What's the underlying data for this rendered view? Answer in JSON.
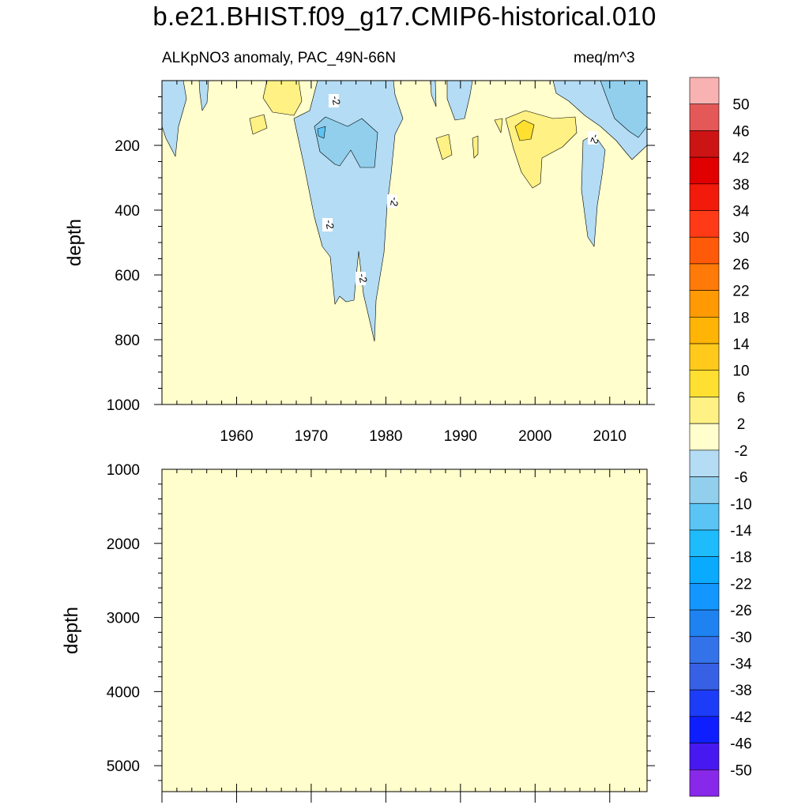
{
  "title": "b.e21.BHIST.f09_g17.CMIP6-historical.010",
  "subtitle_left": "ALKpNO3 anomaly, PAC_49N-66N",
  "subtitle_right": "meq/m^3",
  "chart_data": [
    {
      "type": "heatmap",
      "panel": "upper",
      "title": "ALKpNO3 anomaly, PAC_49N-66N",
      "units": "meq/m^3",
      "xlabel": "",
      "ylabel": "depth",
      "xlim": [
        1950,
        2015
      ],
      "ylim": [
        1000,
        0
      ],
      "x_ticks": [
        1960,
        1970,
        1980,
        1990,
        2000,
        2010
      ],
      "y_ticks": [
        200,
        400,
        600,
        800,
        1000
      ],
      "background_level": "-2 to 2",
      "contour_labels": [
        "-2",
        "-2",
        "-2",
        "-2",
        "-2"
      ],
      "features": [
        {
          "description": "negative anomaly tongue",
          "years": [
            1971,
            1981
          ],
          "depth_max": 810,
          "value_range": [
            -6,
            -2
          ]
        },
        {
          "description": "negative core",
          "years": [
            1970,
            1976
          ],
          "depth_range": [
            140,
            270
          ],
          "value_range": [
            -10,
            -6
          ]
        },
        {
          "description": "positive anomaly",
          "years": [
            1997,
            2005
          ],
          "depth_range": [
            120,
            320
          ],
          "value_range": [
            2,
            10
          ]
        },
        {
          "description": "negative near-surface",
          "years": [
            2004,
            2015
          ],
          "depth_range": [
            0,
            250
          ],
          "value_range": [
            -10,
            -2
          ]
        }
      ]
    },
    {
      "type": "heatmap",
      "panel": "lower",
      "xlabel": "",
      "ylabel": "depth",
      "xlim": [
        1950,
        2015
      ],
      "ylim": [
        5350,
        1000
      ],
      "y_ticks": [
        1000,
        2000,
        3000,
        4000,
        5000
      ],
      "background_level": "-2 to 2"
    }
  ],
  "colorbar": {
    "labels": [
      "50",
      "46",
      "42",
      "38",
      "34",
      "30",
      "26",
      "22",
      "18",
      "14",
      "10",
      "6",
      "2",
      "-2",
      "-6",
      "-10",
      "-14",
      "-18",
      "-22",
      "-26",
      "-30",
      "-34",
      "-38",
      "-42",
      "-46",
      "-50"
    ],
    "colors": [
      "#f9b2b2",
      "#e45858",
      "#cd1414",
      "#e10000",
      "#f21a0a",
      "#ff3a16",
      "#ff5a0a",
      "#ff7a08",
      "#ff9a05",
      "#ffb406",
      "#ffca1c",
      "#ffe030",
      "#fff183",
      "#fffecc",
      "#b4dcf4",
      "#92cfed",
      "#5ac4f5",
      "#1ebcfc",
      "#0aaaff",
      "#1496ff",
      "#1e82f0",
      "#3472ea",
      "#3760e4",
      "#1c3cf8",
      "#0f1eff",
      "#4818f0",
      "#8828e8"
    ]
  }
}
